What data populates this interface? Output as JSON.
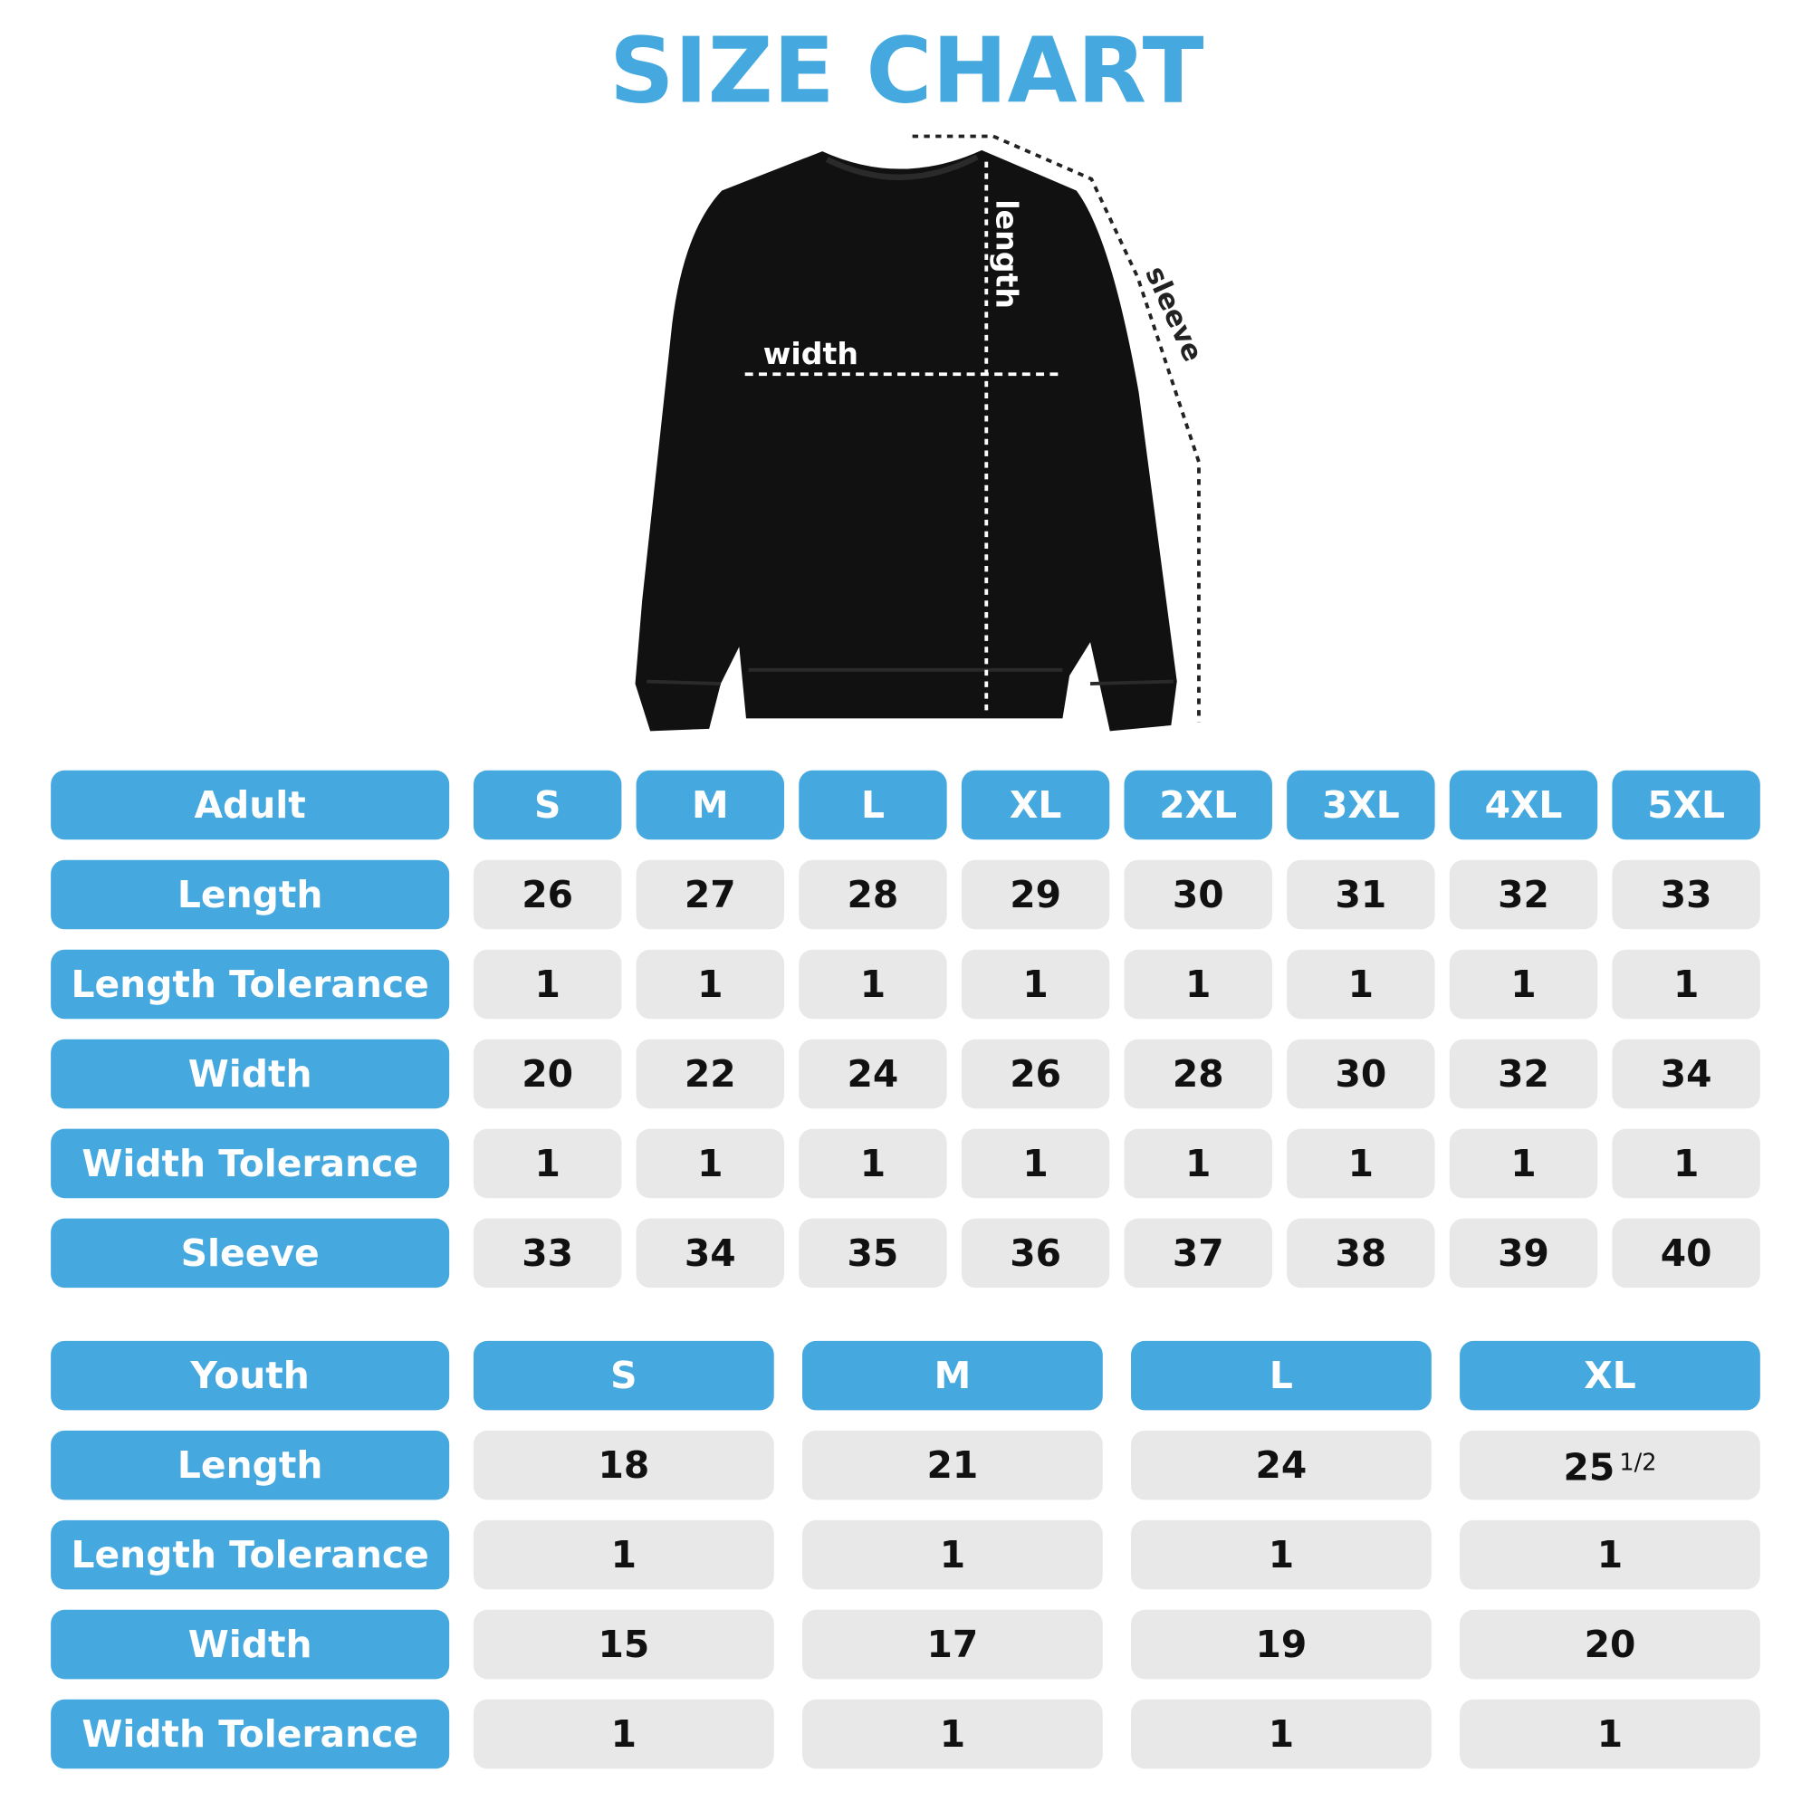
{
  "title": "SIZE CHART",
  "diagram": {
    "width_label": "width",
    "length_label": "length",
    "sleeve_label": "sleeve"
  },
  "tables": [
    {
      "header": [
        "Adult",
        "S",
        "M",
        "L",
        "XL",
        "2XL",
        "3XL",
        "4XL",
        "5XL"
      ],
      "rows": [
        {
          "label": "Length",
          "cells": [
            26,
            27,
            28,
            29,
            30,
            31,
            32,
            33
          ]
        },
        {
          "label": "Length Tolerance",
          "cells": [
            1,
            1,
            1,
            1,
            1,
            1,
            1,
            1
          ]
        },
        {
          "label": "Width",
          "cells": [
            20,
            22,
            24,
            26,
            28,
            30,
            32,
            34
          ]
        },
        {
          "label": "Width Tolerance",
          "cells": [
            1,
            1,
            1,
            1,
            1,
            1,
            1,
            1
          ]
        },
        {
          "label": "Sleeve",
          "cells": [
            33,
            34,
            35,
            36,
            37,
            38,
            39,
            40
          ]
        }
      ]
    },
    {
      "header": [
        "Youth",
        "S",
        "M",
        "L",
        "XL"
      ],
      "rows": [
        {
          "label": "Length",
          "cells": [
            18,
            21,
            24,
            {
              "whole": 25,
              "fraction": "1/2"
            }
          ]
        },
        {
          "label": "Length Tolerance",
          "cells": [
            1,
            1,
            1,
            1
          ]
        },
        {
          "label": "Width",
          "cells": [
            15,
            17,
            19,
            20
          ]
        },
        {
          "label": "Width Tolerance",
          "cells": [
            1,
            1,
            1,
            1
          ]
        }
      ]
    }
  ]
}
